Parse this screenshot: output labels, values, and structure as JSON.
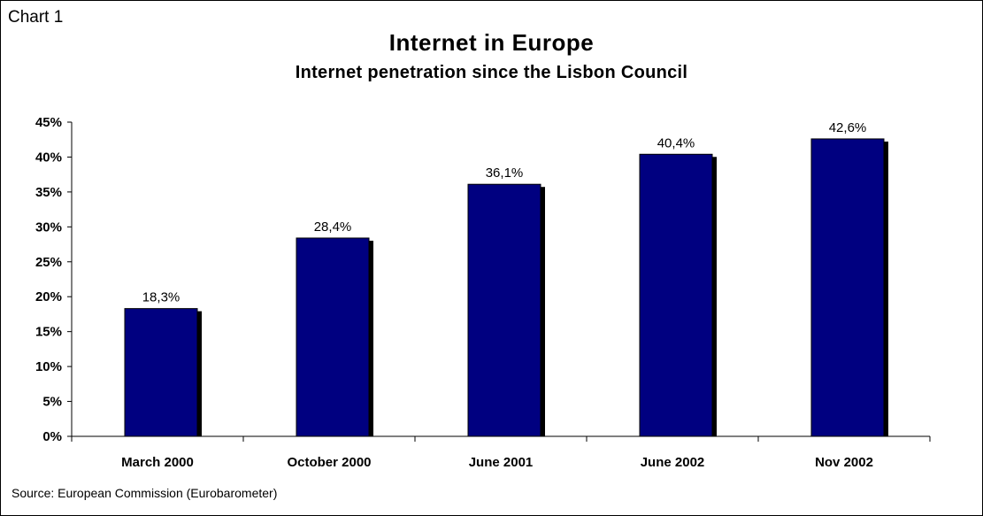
{
  "header": {
    "chart_label": "Chart 1"
  },
  "footer": {
    "source": "Source:  European Commission (Eurobarometer)"
  },
  "colors": {
    "bar": "#000080",
    "bar_shadow": "#000000",
    "axis": "#000000"
  },
  "chart_data": {
    "type": "bar",
    "title": "Internet in Europe",
    "subtitle": "Internet penetration since the Lisbon Council",
    "xlabel": "",
    "ylabel": "",
    "categories": [
      "March 2000",
      "October 2000",
      "June 2001",
      "June 2002",
      "Nov 2002"
    ],
    "values": [
      18.3,
      28.4,
      36.1,
      40.4,
      42.6
    ],
    "data_labels": [
      "18,3%",
      "28,4%",
      "36,1%",
      "40,4%",
      "42,6%"
    ],
    "ylim": [
      0,
      45
    ],
    "yticks": [
      0,
      5,
      10,
      15,
      20,
      25,
      30,
      35,
      40,
      45
    ],
    "ytick_labels": [
      "0%",
      "5%",
      "10%",
      "15%",
      "20%",
      "25%",
      "30%",
      "35%",
      "40%",
      "45%"
    ],
    "grid": false,
    "legend": "none"
  }
}
